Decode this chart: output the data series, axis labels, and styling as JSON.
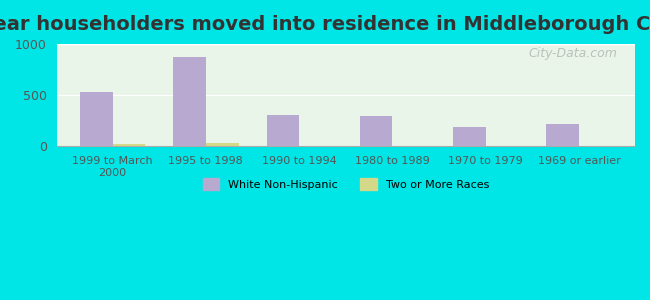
{
  "title": "Year householders moved into residence in Middleborough Center",
  "categories": [
    "1999 to March\n2000",
    "1995 to 1998",
    "1990 to 1994",
    "1980 to 1989",
    "1970 to 1979",
    "1969 or earlier"
  ],
  "white_non_hispanic": [
    527,
    874,
    305,
    293,
    192,
    223
  ],
  "two_or_more_races": [
    28,
    30,
    8,
    0,
    0,
    0
  ],
  "bar_color_white": "#b8a9d0",
  "bar_color_two": "#d4d98a",
  "background_outer": "#00e5e5",
  "background_plot_top": "#e8f5e8",
  "background_plot_bottom": "#f5f5e8",
  "ylim": [
    0,
    1000
  ],
  "yticks": [
    0,
    500,
    1000
  ],
  "watermark": "City-Data.com",
  "legend_label_white": "White Non-Hispanic",
  "legend_label_two": "Two or More Races",
  "title_fontsize": 14,
  "bar_width": 0.35
}
